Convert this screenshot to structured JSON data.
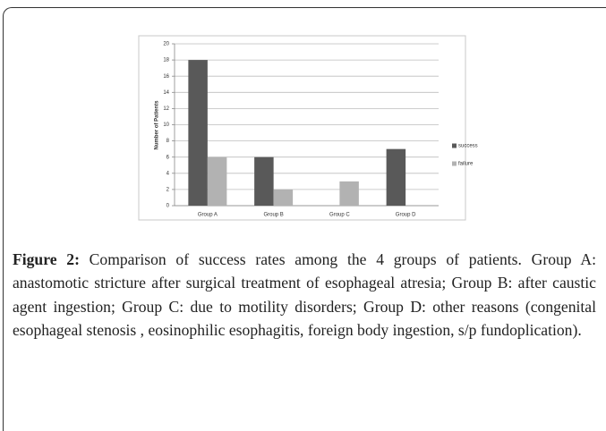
{
  "chart_data": {
    "type": "bar",
    "ylabel": "Number of Patients",
    "categories": [
      "Group A",
      "Group B",
      "Group C",
      "Group D"
    ],
    "series": [
      {
        "name": "success",
        "color": "#595959",
        "values": [
          18,
          6,
          0,
          7
        ]
      },
      {
        "name": "failure",
        "color": "#b2b2b2",
        "values": [
          6,
          2,
          3,
          0
        ]
      }
    ],
    "ylim": [
      0,
      20
    ],
    "yticks": [
      0,
      2,
      4,
      6,
      8,
      10,
      12,
      14,
      16,
      18,
      20
    ],
    "grid": true,
    "legend": "right"
  },
  "caption": {
    "label": "Figure 2:",
    "text": "Comparison of success rates among the 4 groups of patients. Group A: anastomotic stricture after surgical treatment of esophageal atresia; Group B: after caustic agent ingestion; Group C: due to motility disorders; Group D: other reasons (congenital esophageal stenosis , eosinophilic esophagitis, foreign body ingestion, s/p fundoplication)."
  }
}
